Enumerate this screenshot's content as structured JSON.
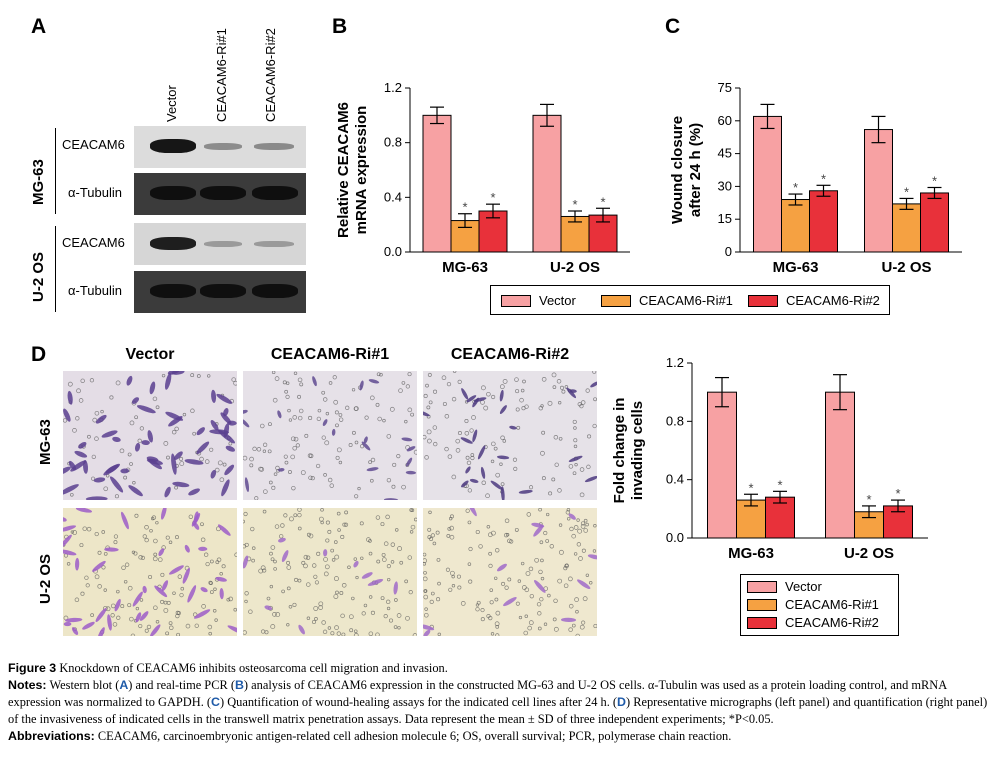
{
  "panels": {
    "a": "A",
    "b": "B",
    "c": "C",
    "d": "D"
  },
  "blot": {
    "lanes": [
      "Vector",
      "CEACAM6-Ri#1",
      "CEACAM6-Ri#2"
    ],
    "cell_lines": [
      "MG-63",
      "U-2 OS"
    ],
    "rows": [
      {
        "label": "CEACAM6",
        "intensity": [
          1.0,
          0.3,
          0.35
        ]
      },
      {
        "label": "α-Tubulin",
        "intensity": [
          1.0,
          1.0,
          1.0
        ]
      },
      {
        "label": "CEACAM6",
        "intensity": [
          0.95,
          0.25,
          0.28
        ]
      },
      {
        "label": "α-Tubulin",
        "intensity": [
          1.0,
          1.0,
          1.0
        ]
      }
    ]
  },
  "legend": {
    "items": [
      "Vector",
      "CEACAM6-Ri#1",
      "CEACAM6-Ri#2"
    ]
  },
  "micro": {
    "columns": [
      "Vector",
      "CEACAM6-Ri#1",
      "CEACAM6-Ri#2"
    ],
    "rows": [
      "MG-63",
      "U-2 OS"
    ]
  },
  "chart_data": [
    {
      "id": "B",
      "type": "bar",
      "categories": [
        "MG-63",
        "U-2 OS"
      ],
      "ylabel": "Relative CEACAM6 mRNA expression",
      "ylim": [
        0,
        1.2
      ],
      "yticks": [
        "0.0",
        "0.4",
        "0.8",
        "1.2"
      ],
      "series": [
        {
          "name": "Vector",
          "values": [
            1.0,
            1.0
          ],
          "errors": [
            0.06,
            0.08
          ],
          "star": [
            false,
            false
          ]
        },
        {
          "name": "CEACAM6-Ri#1",
          "values": [
            0.23,
            0.26
          ],
          "errors": [
            0.05,
            0.04
          ],
          "star": [
            true,
            true
          ]
        },
        {
          "name": "CEACAM6-Ri#2",
          "values": [
            0.3,
            0.27
          ],
          "errors": [
            0.05,
            0.05
          ],
          "star": [
            true,
            true
          ]
        }
      ]
    },
    {
      "id": "C",
      "type": "bar",
      "categories": [
        "MG-63",
        "U-2 OS"
      ],
      "ylabel": "Wound closure after 24 h (%)",
      "ylim": [
        0,
        75
      ],
      "yticks": [
        "0",
        "15",
        "30",
        "45",
        "60",
        "75"
      ],
      "series": [
        {
          "name": "Vector",
          "values": [
            62,
            56
          ],
          "errors": [
            5.5,
            6
          ],
          "star": [
            false,
            false
          ]
        },
        {
          "name": "CEACAM6-Ri#1",
          "values": [
            24,
            22
          ],
          "errors": [
            2.5,
            2.5
          ],
          "star": [
            true,
            true
          ]
        },
        {
          "name": "CEACAM6-Ri#2",
          "values": [
            28,
            27
          ],
          "errors": [
            2.5,
            2.5
          ],
          "star": [
            true,
            true
          ]
        }
      ]
    },
    {
      "id": "D",
      "type": "bar",
      "categories": [
        "MG-63",
        "U-2 OS"
      ],
      "ylabel": "Fold change in invading cells",
      "ylim": [
        0,
        1.2
      ],
      "yticks": [
        "0.0",
        "0.4",
        "0.8",
        "1.2"
      ],
      "series": [
        {
          "name": "Vector",
          "values": [
            1.0,
            1.0
          ],
          "errors": [
            0.1,
            0.12
          ],
          "star": [
            false,
            false
          ]
        },
        {
          "name": "CEACAM6-Ri#1",
          "values": [
            0.26,
            0.18
          ],
          "errors": [
            0.04,
            0.04
          ],
          "star": [
            true,
            true
          ]
        },
        {
          "name": "CEACAM6-Ri#2",
          "values": [
            0.28,
            0.22
          ],
          "errors": [
            0.04,
            0.04
          ],
          "star": [
            true,
            true
          ]
        }
      ]
    }
  ],
  "colors": {
    "vector": "#f7a1a3",
    "ri1": "#f5a142",
    "ri2": "#e8313a",
    "blot_bg": "#3a3a3a"
  },
  "caption": {
    "fig_label": "Figure 3",
    "fig_title": "Knockdown of CEACAM6 inhibits osteosarcoma cell migration and invasion.",
    "notes_label": "Notes:",
    "notes_1": "Western blot (",
    "notes_a": "A",
    "notes_2": ") and real-time PCR (",
    "notes_b": "B",
    "notes_3": ") analysis of CEACAM6 expression in the constructed MG-63 and U-2 OS cells. α-Tubulin was used as a protein loading control, and mRNA expression was normalized to GAPDH. (",
    "notes_c": "C",
    "notes_4": ") Quantification of wound-healing assays for the indicated cell lines after 24 h. (",
    "notes_d": "D",
    "notes_5": ") Representative micrographs (left panel) and quantification (right panel) of the invasiveness of indicated cells in the transwell matrix penetration assays. Data represent the mean ± SD of three independent experiments; *P<0.05.",
    "abbr_label": "Abbreviations:",
    "abbr_text": "CEACAM6, carcinoembryonic antigen-related cell adhesion molecule 6; OS, overall survival; PCR, polymerase chain reaction."
  }
}
